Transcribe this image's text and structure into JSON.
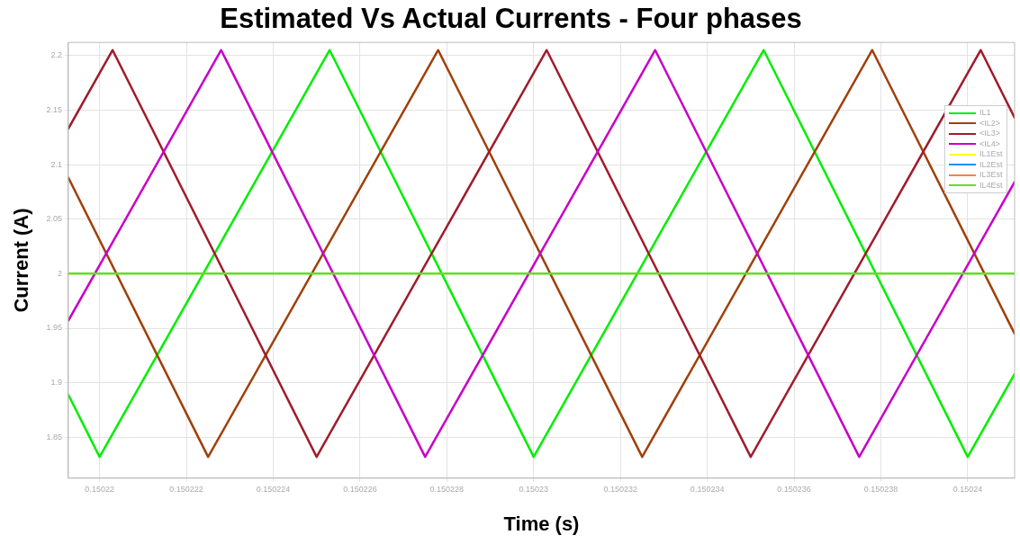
{
  "chart_data": {
    "type": "line",
    "title": "Estimated Vs Actual Currents - Four phases",
    "xlabel": "Time (s)",
    "ylabel": "Current (A)",
    "xlim": [
      0.15021928,
      0.15024108
    ],
    "xticks": [
      0.15022,
      0.150222,
      0.150224,
      0.150226,
      0.150228,
      0.15023,
      0.150232,
      0.150234,
      0.150236,
      0.150238,
      0.15024
    ],
    "ylim": [
      1.8125,
      2.212
    ],
    "yticks": [
      1.85,
      1.9,
      1.95,
      2,
      2.05,
      2.1,
      2.15,
      2.2
    ],
    "grid": true,
    "legend": "top right",
    "marker": "none",
    "line_style": "solid",
    "series": [
      {
        "name": "IL1",
        "color": "#00ee00",
        "x": [
          0.15021928,
          0.15022,
          0.1502253,
          0.15023,
          0.1502353,
          0.15024,
          0.15024108
        ],
        "values": [
          1.889,
          1.832,
          2.205,
          1.832,
          2.205,
          1.832,
          1.908
        ]
      },
      {
        "name": "<IL2>",
        "color": "#a0400a",
        "x": [
          0.15021928,
          0.1502225,
          0.1502278,
          0.1502325,
          0.1502378,
          0.15024108
        ],
        "values": [
          2.088,
          1.832,
          2.205,
          1.832,
          2.205,
          1.945
        ]
      },
      {
        "name": "<IL3>",
        "color": "#a01c2c",
        "x": [
          0.15021928,
          0.1502203,
          0.150225,
          0.1502303,
          0.150235,
          0.1502403,
          0.15024108
        ],
        "values": [
          2.133,
          2.205,
          1.832,
          2.205,
          1.832,
          2.205,
          2.143
        ]
      },
      {
        "name": "<IL4>",
        "color": "#c800c8",
        "x": [
          0.15021928,
          0.1502228,
          0.1502275,
          0.1502328,
          0.1502375,
          0.15024108
        ],
        "values": [
          1.957,
          2.205,
          1.832,
          2.205,
          1.832,
          2.084
        ]
      },
      {
        "name": "IL1Est",
        "color": "#ffff00"
      },
      {
        "name": "IL2Est",
        "color": "#1e90ff"
      },
      {
        "name": "IL3Est",
        "color": "#ff7f40"
      },
      {
        "name": "IL4Est",
        "color": "#66dd22",
        "x": [
          0.15021928,
          0.15024108
        ],
        "values": [
          2,
          2
        ]
      }
    ]
  }
}
